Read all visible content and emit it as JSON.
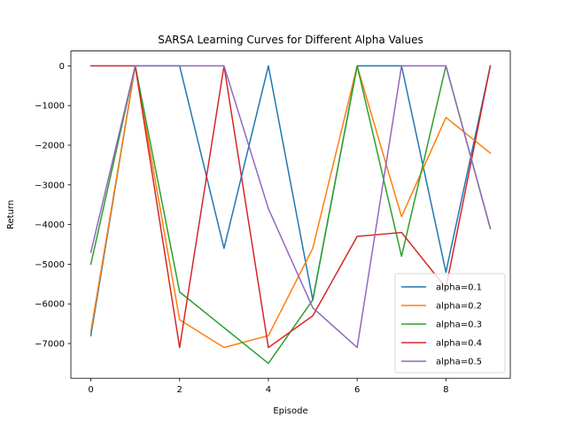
{
  "chart_data": {
    "type": "line",
    "title": "SARSA Learning Curves for Different Alpha Values",
    "xlabel": "Episode",
    "ylabel": "Return",
    "xlim": [
      -0.45,
      9.45
    ],
    "ylim": [
      -7875,
      375
    ],
    "xticks": [
      0,
      2,
      4,
      6,
      8
    ],
    "yticks": [
      0,
      -1000,
      -2000,
      -3000,
      -4000,
      -5000,
      -6000,
      -7000
    ],
    "ytick_labels": [
      "0",
      "−1000",
      "−2000",
      "−3000",
      "−4000",
      "−5000",
      "−6000",
      "−7000"
    ],
    "grid": false,
    "legend_position": "lower right",
    "x": [
      0,
      1,
      2,
      3,
      4,
      5,
      6,
      7,
      8,
      9
    ],
    "series": [
      {
        "name": "alpha=0.1",
        "color": "#1f77b4",
        "values": [
          -6800,
          0,
          0,
          -4600,
          0,
          -5900,
          0,
          0,
          -5200,
          0
        ]
      },
      {
        "name": "alpha=0.2",
        "color": "#ff7f0e",
        "values": [
          -6700,
          0,
          -6400,
          -7100,
          -6800,
          -4600,
          0,
          -3800,
          -1300,
          -2200
        ]
      },
      {
        "name": "alpha=0.3",
        "color": "#2ca02c",
        "values": [
          -5000,
          0,
          -5700,
          -6600,
          -7500,
          -5900,
          0,
          -4800,
          0,
          -4100
        ]
      },
      {
        "name": "alpha=0.4",
        "color": "#d62728",
        "values": [
          0,
          0,
          -7100,
          0,
          -7100,
          -6300,
          -4300,
          -4200,
          -5600,
          0
        ]
      },
      {
        "name": "alpha=0.5",
        "color": "#9467bd",
        "values": [
          -4700,
          0,
          0,
          0,
          -3600,
          -6100,
          -7100,
          0,
          0,
          -4100
        ]
      }
    ]
  }
}
